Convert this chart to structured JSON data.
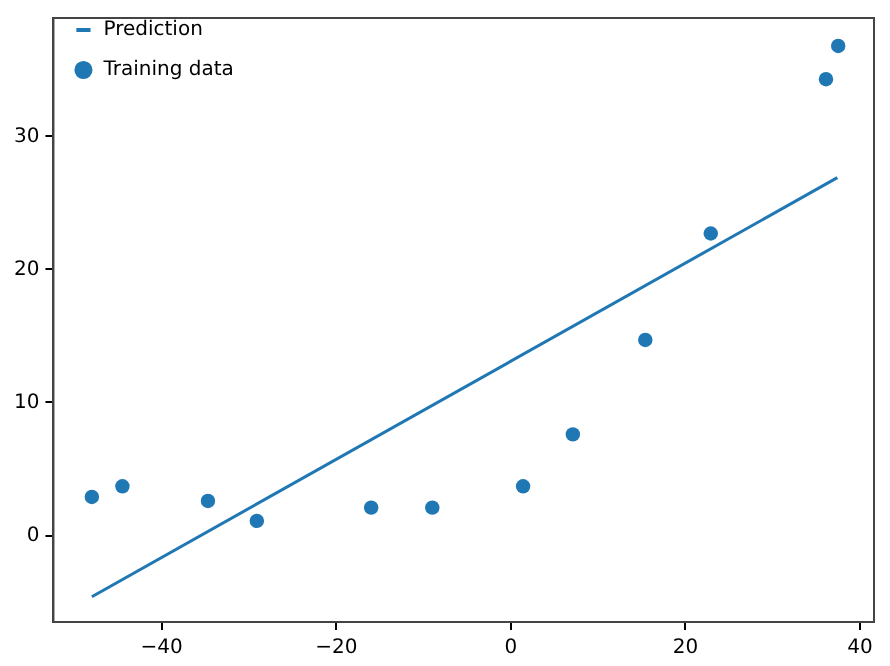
{
  "chart_data": {
    "type": "scatter",
    "xlim": [
      -52.4,
      41.6
    ],
    "xticks": [
      -40,
      -20,
      0,
      20,
      40
    ],
    "ylim": [
      -6.5,
      38.9
    ],
    "yticks": [
      0,
      10,
      20,
      30
    ],
    "grid": false,
    "legend": "top left",
    "series": [
      {
        "name": "Prediction",
        "type": "line",
        "color": "#1f77b4",
        "marker": "none",
        "x": [
          -48.0,
          37.4
        ],
        "values": [
          -4.6,
          26.9
        ]
      },
      {
        "name": "Training data",
        "type": "scatter",
        "color": "#1f77b4",
        "marker": "circle",
        "x": [
          -48.0,
          -44.5,
          -34.7,
          -29.1,
          -16.0,
          -9.0,
          1.4,
          7.1,
          15.4,
          22.9,
          36.1,
          37.5
        ],
        "values": [
          2.9,
          3.7,
          2.6,
          1.1,
          2.1,
          2.1,
          3.7,
          7.6,
          14.7,
          22.7,
          34.3,
          36.8
        ]
      }
    ]
  }
}
